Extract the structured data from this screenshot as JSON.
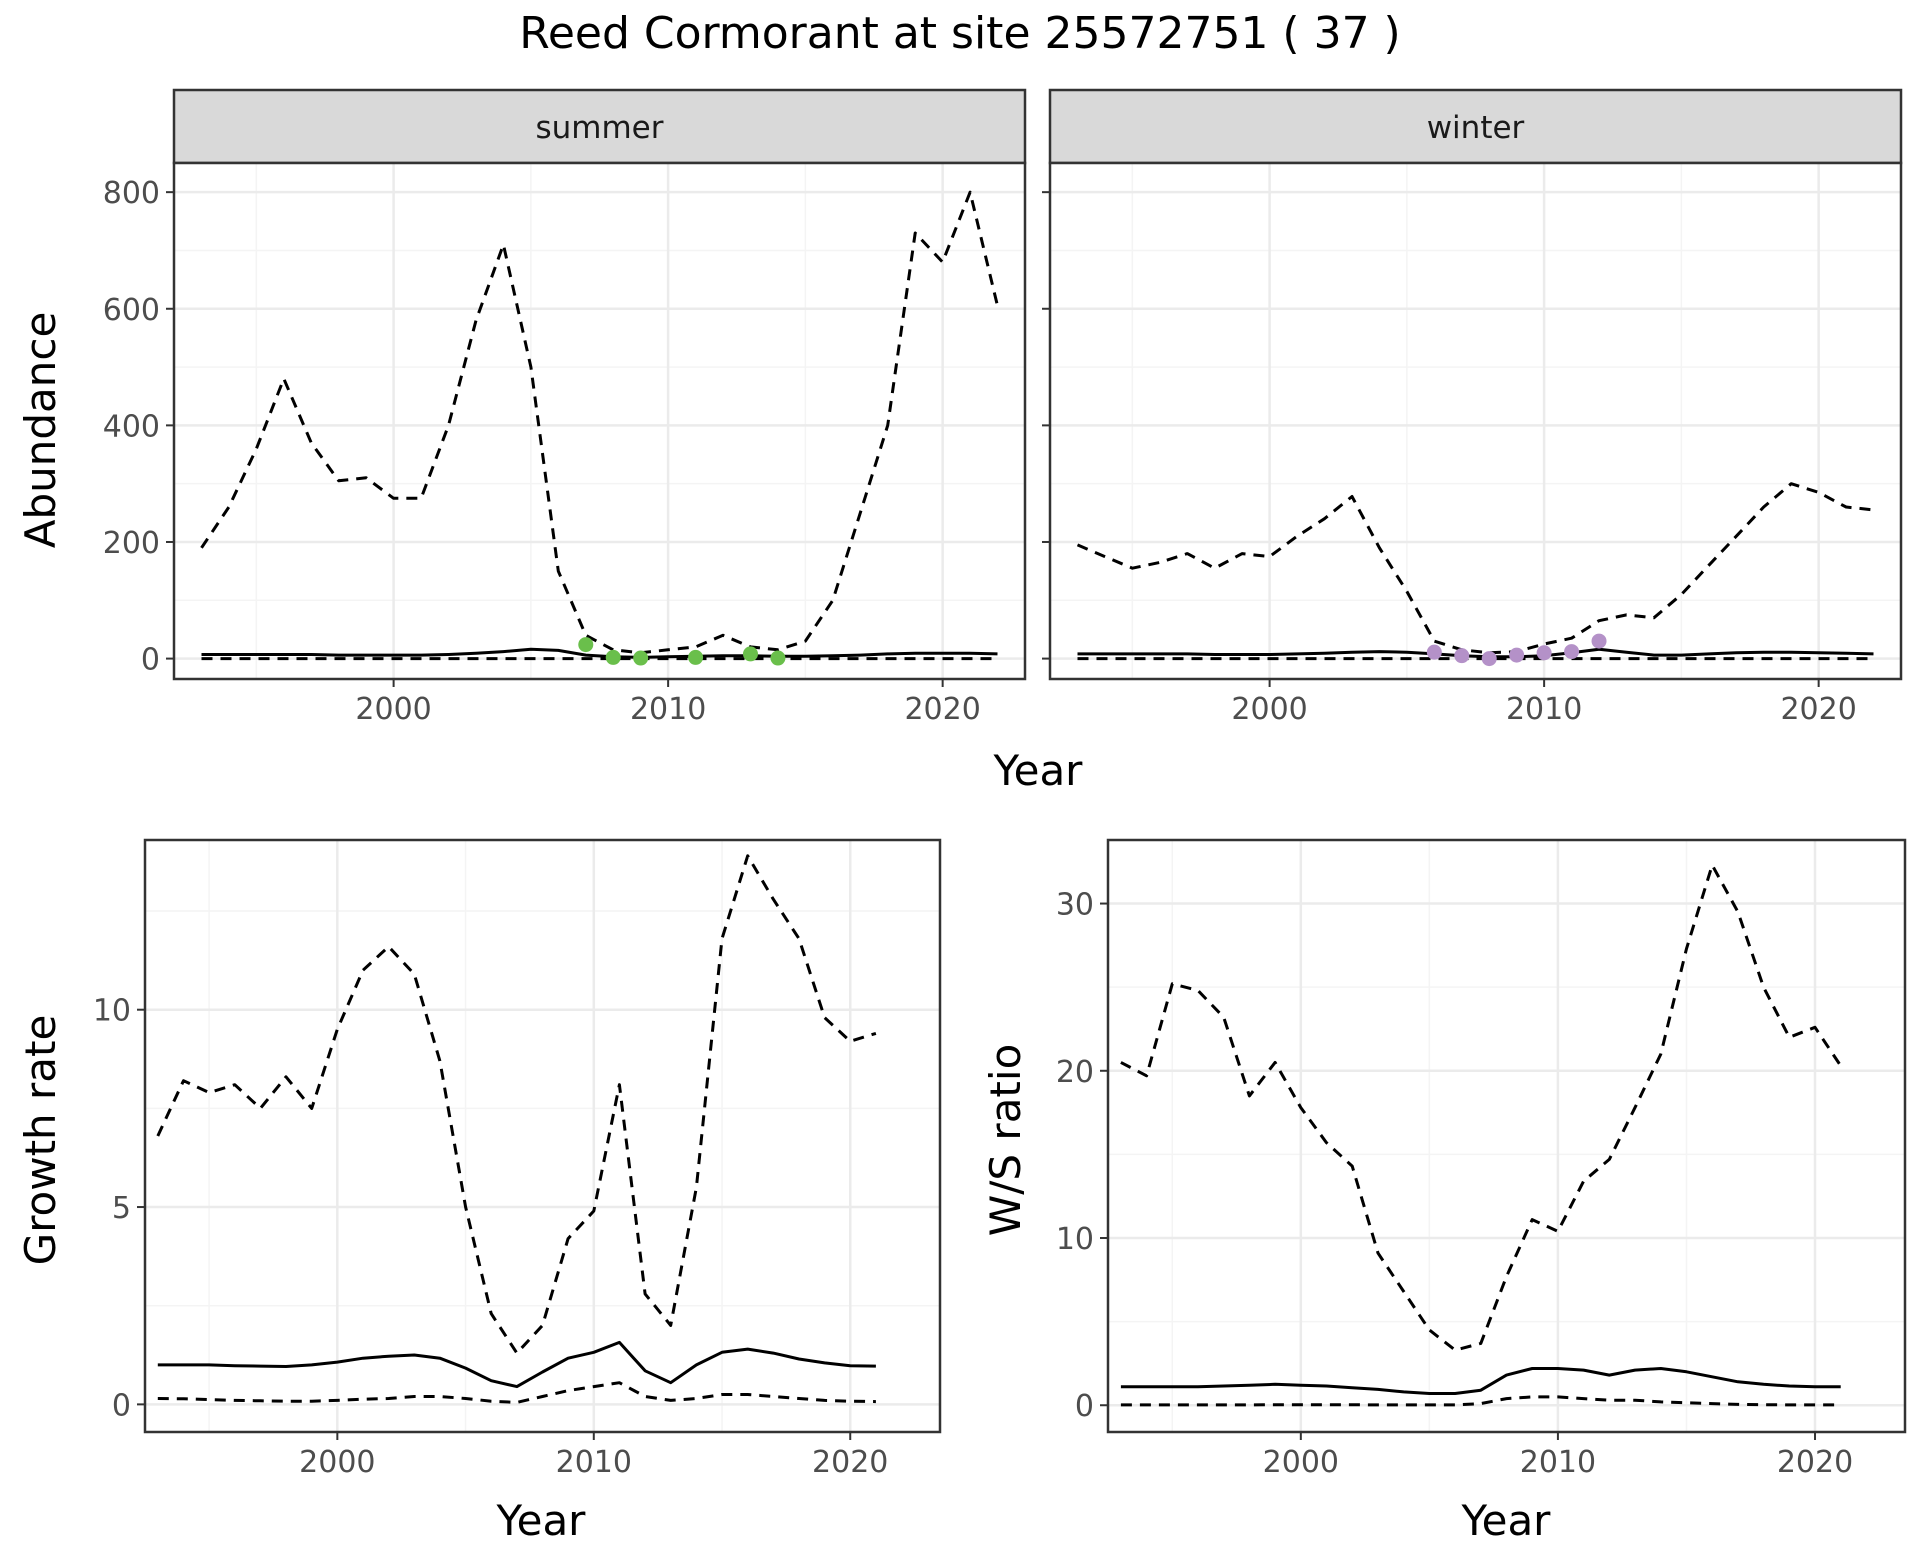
{
  "title": "Reed Cormorant at site 25572751 ( 37 )",
  "colors": {
    "summer_points": "#6abf4b",
    "winter_points": "#b491c8",
    "line": "#000000",
    "grid_major": "#ebebeb",
    "grid_minor": "#f4f4f4",
    "strip_fill": "#d9d9d9",
    "panel_border": "#333333",
    "tick_text": "#4d4d4d"
  },
  "chart_data": [
    {
      "type": "line",
      "panel": "summer",
      "strip_label": "summer",
      "xlabel": "Year",
      "ylabel": "Abundance",
      "xlim": [
        1992,
        2023
      ],
      "ylim": [
        -35,
        850
      ],
      "x_ticks": [
        2000,
        2010,
        2020
      ],
      "y_ticks": [
        0,
        200,
        400,
        600,
        800
      ],
      "grid": true,
      "series": [
        {
          "role": "mean",
          "style": "solid",
          "x": [
            1993,
            1994,
            1995,
            1996,
            1997,
            1998,
            1999,
            2000,
            2001,
            2002,
            2003,
            2004,
            2005,
            2006,
            2007,
            2008,
            2009,
            2010,
            2011,
            2012,
            2013,
            2014,
            2015,
            2016,
            2017,
            2018,
            2019,
            2020,
            2021,
            2022
          ],
          "y": [
            7,
            7,
            7,
            7,
            7,
            6,
            6,
            6,
            6,
            7,
            9,
            12,
            16,
            14,
            6,
            3,
            2,
            3,
            4,
            5,
            5,
            4,
            4,
            5,
            6,
            8,
            9,
            9,
            9,
            8
          ]
        },
        {
          "role": "upper",
          "style": "dashed",
          "x": [
            1993,
            1994,
            1995,
            1996,
            1997,
            1998,
            1999,
            2000,
            2001,
            2002,
            2003,
            2004,
            2005,
            2006,
            2007,
            2008,
            2009,
            2010,
            2011,
            2012,
            2013,
            2014,
            2015,
            2016,
            2017,
            2018,
            2019,
            2020,
            2021,
            2022
          ],
          "y": [
            190,
            260,
            360,
            480,
            370,
            305,
            310,
            275,
            275,
            400,
            580,
            710,
            500,
            150,
            40,
            15,
            10,
            15,
            20,
            40,
            20,
            15,
            30,
            100,
            250,
            400,
            730,
            680,
            800,
            605
          ]
        },
        {
          "role": "lower",
          "style": "dashed",
          "x": [
            1993,
            2022
          ],
          "y": [
            0,
            0
          ]
        }
      ],
      "points": {
        "x": [
          2007,
          2008,
          2009,
          2011,
          2013,
          2014
        ],
        "y": [
          24,
          2,
          1,
          2,
          8,
          1
        ]
      }
    },
    {
      "type": "line",
      "panel": "winter",
      "strip_label": "winter",
      "xlabel": "Year",
      "ylabel": "Abundance",
      "xlim": [
        1992,
        2023
      ],
      "ylim": [
        -35,
        850
      ],
      "x_ticks": [
        2000,
        2010,
        2020
      ],
      "y_ticks": [
        0,
        200,
        400,
        600,
        800
      ],
      "grid": true,
      "series": [
        {
          "role": "mean",
          "style": "solid",
          "x": [
            1993,
            1994,
            1995,
            1996,
            1997,
            1998,
            1999,
            2000,
            2001,
            2002,
            2003,
            2004,
            2005,
            2006,
            2007,
            2008,
            2009,
            2010,
            2011,
            2012,
            2013,
            2014,
            2015,
            2016,
            2017,
            2018,
            2019,
            2020,
            2021,
            2022
          ],
          "y": [
            8,
            8,
            8,
            8,
            8,
            7,
            7,
            7,
            8,
            9,
            11,
            12,
            11,
            8,
            5,
            3,
            3,
            5,
            10,
            16,
            11,
            6,
            6,
            8,
            10,
            11,
            11,
            10,
            9,
            8
          ]
        },
        {
          "role": "upper",
          "style": "dashed",
          "x": [
            1993,
            1994,
            1995,
            1996,
            1997,
            1998,
            1999,
            2000,
            2001,
            2002,
            2003,
            2004,
            2005,
            2006,
            2007,
            2008,
            2009,
            2010,
            2011,
            2012,
            2013,
            2014,
            2015,
            2016,
            2017,
            2018,
            2019,
            2020,
            2021,
            2022
          ],
          "y": [
            195,
            175,
            155,
            165,
            180,
            155,
            180,
            175,
            210,
            240,
            278,
            190,
            115,
            30,
            15,
            10,
            12,
            25,
            35,
            65,
            75,
            70,
            110,
            160,
            210,
            260,
            300,
            285,
            260,
            255
          ]
        },
        {
          "role": "lower",
          "style": "dashed",
          "x": [
            1993,
            2022
          ],
          "y": [
            0,
            0
          ]
        }
      ],
      "points": {
        "x": [
          2006,
          2007,
          2008,
          2009,
          2010,
          2011,
          2012
        ],
        "y": [
          11,
          5,
          0,
          6,
          10,
          12,
          30
        ]
      }
    },
    {
      "type": "line",
      "panel": "growth",
      "xlabel": "Year",
      "ylabel": "Growth rate",
      "xlim": [
        1992.5,
        2023.5
      ],
      "ylim": [
        -0.7,
        14.3
      ],
      "x_ticks": [
        2000,
        2010,
        2020
      ],
      "y_ticks": [
        0,
        5,
        10
      ],
      "grid": true,
      "series": [
        {
          "role": "mean",
          "style": "solid",
          "x": [
            1993,
            1994,
            1995,
            1996,
            1997,
            1998,
            1999,
            2000,
            2001,
            2002,
            2003,
            2004,
            2005,
            2006,
            2007,
            2008,
            2009,
            2010,
            2011,
            2012,
            2013,
            2014,
            2015,
            2016,
            2017,
            2018,
            2019,
            2020,
            2021
          ],
          "y": [
            1.0,
            1.0,
            1.0,
            0.98,
            0.97,
            0.96,
            1.0,
            1.07,
            1.17,
            1.22,
            1.25,
            1.17,
            0.92,
            0.6,
            0.45,
            0.82,
            1.17,
            1.32,
            1.57,
            0.85,
            0.55,
            1.0,
            1.32,
            1.4,
            1.3,
            1.15,
            1.05,
            0.98,
            0.97
          ]
        },
        {
          "role": "upper",
          "style": "dashed",
          "x": [
            1993,
            1994,
            1995,
            1996,
            1997,
            1998,
            1999,
            2000,
            2001,
            2002,
            2003,
            2004,
            2005,
            2006,
            2007,
            2008,
            2009,
            2010,
            2011,
            2012,
            2013,
            2014,
            2015,
            2016,
            2017,
            2018,
            2019,
            2020,
            2021
          ],
          "y": [
            6.8,
            8.2,
            7.9,
            8.1,
            7.5,
            8.3,
            7.5,
            9.5,
            11.0,
            11.6,
            10.9,
            8.7,
            5.0,
            2.3,
            1.3,
            2.0,
            4.2,
            4.9,
            8.1,
            2.8,
            2.0,
            5.5,
            11.8,
            13.9,
            12.8,
            11.8,
            9.8,
            9.2,
            9.4
          ]
        },
        {
          "role": "lower",
          "style": "dashed",
          "x": [
            1993,
            1994,
            1995,
            1996,
            1997,
            1998,
            1999,
            2000,
            2001,
            2002,
            2003,
            2004,
            2005,
            2006,
            2007,
            2008,
            2009,
            2010,
            2011,
            2012,
            2013,
            2014,
            2015,
            2016,
            2017,
            2018,
            2019,
            2020,
            2021
          ],
          "y": [
            0.15,
            0.14,
            0.12,
            0.1,
            0.09,
            0.08,
            0.08,
            0.1,
            0.13,
            0.15,
            0.2,
            0.2,
            0.15,
            0.08,
            0.05,
            0.2,
            0.35,
            0.45,
            0.55,
            0.2,
            0.1,
            0.15,
            0.25,
            0.25,
            0.2,
            0.15,
            0.1,
            0.08,
            0.07
          ]
        }
      ]
    },
    {
      "type": "line",
      "panel": "ws_ratio",
      "xlabel": "Year",
      "ylabel": "W/S ratio",
      "xlim": [
        1992.5,
        2023.5
      ],
      "ylim": [
        -1.6,
        33.8
      ],
      "x_ticks": [
        2000,
        2010,
        2020
      ],
      "y_ticks": [
        0,
        10,
        20,
        30
      ],
      "grid": true,
      "series": [
        {
          "role": "mean",
          "style": "solid",
          "x": [
            1993,
            1994,
            1995,
            1996,
            1997,
            1998,
            1999,
            2000,
            2001,
            2002,
            2003,
            2004,
            2005,
            2006,
            2007,
            2008,
            2009,
            2010,
            2011,
            2012,
            2013,
            2014,
            2015,
            2016,
            2017,
            2018,
            2019,
            2020,
            2021
          ],
          "y": [
            1.1,
            1.1,
            1.1,
            1.1,
            1.15,
            1.2,
            1.25,
            1.2,
            1.15,
            1.05,
            0.95,
            0.8,
            0.7,
            0.7,
            0.9,
            1.8,
            2.2,
            2.2,
            2.1,
            1.8,
            2.1,
            2.2,
            2.0,
            1.7,
            1.4,
            1.25,
            1.15,
            1.1,
            1.1
          ]
        },
        {
          "role": "upper",
          "style": "dashed",
          "x": [
            1993,
            1994,
            1995,
            1996,
            1997,
            1998,
            1999,
            2000,
            2001,
            2002,
            2003,
            2004,
            2005,
            2006,
            2007,
            2008,
            2009,
            2010,
            2011,
            2012,
            2013,
            2014,
            2015,
            2016,
            2017,
            2018,
            2019,
            2020,
            2021
          ],
          "y": [
            20.5,
            19.7,
            25.2,
            24.8,
            23.2,
            18.5,
            20.5,
            17.8,
            15.7,
            14.3,
            9.1,
            6.8,
            4.5,
            3.3,
            3.7,
            7.7,
            11.1,
            10.4,
            13.4,
            14.7,
            17.8,
            21.0,
            27.3,
            32.3,
            29.5,
            25.0,
            22.0,
            22.6,
            20.3
          ]
        },
        {
          "role": "lower",
          "style": "dashed",
          "x": [
            1993,
            1994,
            1995,
            1996,
            1997,
            1998,
            1999,
            2000,
            2001,
            2002,
            2003,
            2004,
            2005,
            2006,
            2007,
            2008,
            2009,
            2010,
            2011,
            2012,
            2013,
            2014,
            2015,
            2016,
            2017,
            2018,
            2019,
            2020,
            2021
          ],
          "y": [
            0.02,
            0.02,
            0.02,
            0.02,
            0.02,
            0.02,
            0.03,
            0.03,
            0.03,
            0.03,
            0.02,
            0.02,
            0.02,
            0.02,
            0.1,
            0.4,
            0.5,
            0.5,
            0.4,
            0.3,
            0.3,
            0.2,
            0.15,
            0.1,
            0.05,
            0.03,
            0.02,
            0.02,
            0.02
          ]
        }
      ]
    }
  ]
}
